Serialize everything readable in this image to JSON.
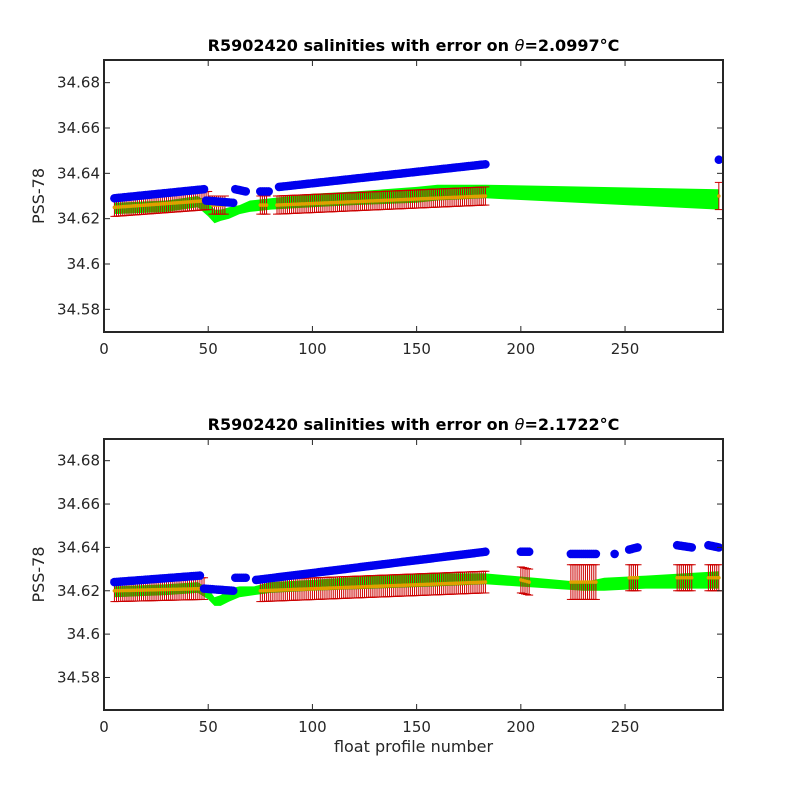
{
  "chart_data": [
    {
      "type": "scatter",
      "title_prefix": "R5902420 salinities with error on ",
      "theta_symbol": "θ",
      "title_value": "=2.0997",
      "title_unit": "°C",
      "ylabel": "PSS-78",
      "xlabel": "",
      "xlim": [
        0,
        297
      ],
      "ylim": [
        34.57,
        34.69
      ],
      "xticks": [
        0,
        50,
        100,
        150,
        200,
        250
      ],
      "yticks": [
        34.58,
        34.6,
        34.62,
        34.64,
        34.66,
        34.68
      ],
      "ytick_labels": [
        "34.58",
        "34.6",
        "34.62",
        "34.64",
        "34.66",
        "34.68"
      ],
      "grid": false,
      "series": [
        {
          "kind": "mapped_band",
          "color": "#00ff00",
          "x": [
            5,
            30,
            45,
            50,
            53,
            56,
            60,
            65,
            70,
            80,
            100,
            120,
            150,
            160,
            183,
            295
          ],
          "y_low": [
            34.622,
            34.623,
            34.625,
            34.621,
            34.618,
            34.619,
            34.62,
            34.622,
            34.623,
            34.624,
            34.625,
            34.626,
            34.627,
            34.628,
            34.629,
            34.624
          ],
          "y_high": [
            34.627,
            34.628,
            34.63,
            34.627,
            34.624,
            34.624,
            34.625,
            34.626,
            34.628,
            34.629,
            34.631,
            34.632,
            34.634,
            34.635,
            34.635,
            34.633
          ]
        },
        {
          "kind": "mapped_with_error",
          "color": "#cc0000",
          "segments": [
            {
              "x_start": 5,
              "x_end": 50,
              "y_start": 34.625,
              "y_end": 34.628,
              "err": 0.004
            },
            {
              "x_start": 52,
              "x_end": 58,
              "y_start": 34.626,
              "y_end": 34.626,
              "err": 0.004
            },
            {
              "x_start": 75,
              "x_end": 78,
              "y_start": 34.626,
              "y_end": 34.626,
              "err": 0.004
            },
            {
              "x_start": 83,
              "x_end": 183,
              "y_start": 34.626,
              "y_end": 34.63,
              "err": 0.004
            },
            {
              "x_start": 295,
              "x_end": 295,
              "y_start": 34.63,
              "y_end": 34.63,
              "err": 0.006
            }
          ]
        },
        {
          "kind": "measured",
          "color": "#0000ee",
          "segments": [
            {
              "x_start": 5,
              "x_end": 48,
              "y_start": 34.629,
              "y_end": 34.633
            },
            {
              "x_start": 49,
              "x_end": 62,
              "y_start": 34.628,
              "y_end": 34.627
            },
            {
              "x_start": 63,
              "x_end": 68,
              "y_start": 34.633,
              "y_end": 34.632
            },
            {
              "x_start": 75,
              "x_end": 79,
              "y_start": 34.632,
              "y_end": 34.632
            },
            {
              "x_start": 84,
              "x_end": 183,
              "y_start": 34.634,
              "y_end": 34.644
            },
            {
              "x_start": 295,
              "x_end": 295,
              "y_start": 34.646,
              "y_end": 34.646
            }
          ]
        }
      ]
    },
    {
      "type": "scatter",
      "title_prefix": "R5902420 salinities with error on ",
      "theta_symbol": "θ",
      "title_value": "=2.1722",
      "title_unit": "°C",
      "ylabel": "PSS-78",
      "xlabel": "float profile number",
      "xlim": [
        0,
        297
      ],
      "ylim": [
        34.565,
        34.69
      ],
      "xticks": [
        0,
        50,
        100,
        150,
        200,
        250
      ],
      "yticks": [
        34.58,
        34.6,
        34.62,
        34.64,
        34.66,
        34.68
      ],
      "ytick_labels": [
        "34.58",
        "34.6",
        "34.62",
        "34.64",
        "34.66",
        "34.68"
      ],
      "grid": false,
      "series": [
        {
          "kind": "mapped_band",
          "color": "#00ff00",
          "x": [
            5,
            30,
            45,
            50,
            53,
            56,
            60,
            65,
            72,
            80,
            100,
            130,
            160,
            183,
            230,
            240,
            260,
            295
          ],
          "y_low": [
            34.617,
            34.618,
            34.619,
            34.616,
            34.613,
            34.613,
            34.615,
            34.617,
            34.618,
            34.619,
            34.62,
            34.621,
            34.622,
            34.623,
            34.62,
            34.62,
            34.621,
            34.621
          ],
          "y_high": [
            34.622,
            34.623,
            34.624,
            34.621,
            34.617,
            34.618,
            34.621,
            34.622,
            34.622,
            34.624,
            34.625,
            34.627,
            34.628,
            34.628,
            34.624,
            34.626,
            34.627,
            34.629
          ]
        },
        {
          "kind": "mapped_with_error",
          "color": "#cc0000",
          "segments": [
            {
              "x_start": 5,
              "x_end": 48,
              "y_start": 34.62,
              "y_end": 34.621,
              "err": 0.005
            },
            {
              "x_start": 75,
              "x_end": 183,
              "y_start": 34.62,
              "y_end": 34.624,
              "err": 0.005
            },
            {
              "x_start": 200,
              "x_end": 204,
              "y_start": 34.625,
              "y_end": 34.624,
              "err": 0.006
            },
            {
              "x_start": 224,
              "x_end": 236,
              "y_start": 34.624,
              "y_end": 34.624,
              "err": 0.008
            },
            {
              "x_start": 252,
              "x_end": 256,
              "y_start": 34.626,
              "y_end": 34.626,
              "err": 0.006
            },
            {
              "x_start": 275,
              "x_end": 282,
              "y_start": 34.626,
              "y_end": 34.626,
              "err": 0.006
            },
            {
              "x_start": 290,
              "x_end": 295,
              "y_start": 34.626,
              "y_end": 34.626,
              "err": 0.006
            }
          ]
        },
        {
          "kind": "measured",
          "color": "#0000ee",
          "segments": [
            {
              "x_start": 5,
              "x_end": 46,
              "y_start": 34.624,
              "y_end": 34.627
            },
            {
              "x_start": 48,
              "x_end": 62,
              "y_start": 34.621,
              "y_end": 34.62
            },
            {
              "x_start": 63,
              "x_end": 68,
              "y_start": 34.626,
              "y_end": 34.626
            },
            {
              "x_start": 73,
              "x_end": 183,
              "y_start": 34.625,
              "y_end": 34.638
            },
            {
              "x_start": 200,
              "x_end": 204,
              "y_start": 34.638,
              "y_end": 34.638
            },
            {
              "x_start": 224,
              "x_end": 236,
              "y_start": 34.637,
              "y_end": 34.637
            },
            {
              "x_start": 245,
              "x_end": 245,
              "y_start": 34.637,
              "y_end": 34.637
            },
            {
              "x_start": 252,
              "x_end": 256,
              "y_start": 34.639,
              "y_end": 34.64
            },
            {
              "x_start": 275,
              "x_end": 282,
              "y_start": 34.641,
              "y_end": 34.64
            },
            {
              "x_start": 290,
              "x_end": 295,
              "y_start": 34.641,
              "y_end": 34.64
            }
          ]
        }
      ]
    }
  ]
}
